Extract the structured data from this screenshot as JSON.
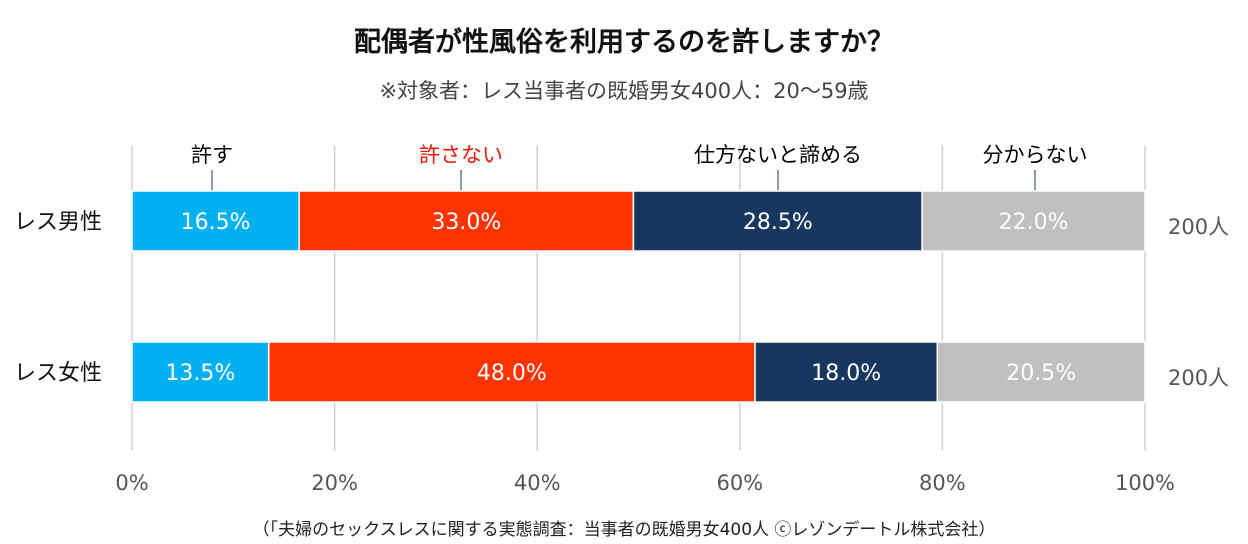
{
  "title": "配偶者が性風俗を利用するのを許しますか？",
  "subtitle": "※対象者：レス当事者の既婚男女400人：20～59歳",
  "source_note": "（「夫婦のセックスレスに関する実態調査：当事者の既婚男女400人 ⓒレゾンデートル株式会社）",
  "chart_data": {
    "type": "bar",
    "orientation": "horizontal",
    "stacked": true,
    "percent": true,
    "categories": [
      "レス男性",
      "レス女性"
    ],
    "series": [
      {
        "name": "許す",
        "values": [
          16.5,
          13.5
        ],
        "labels": [
          "16.5%",
          "13.5%"
        ],
        "color": "#00b0f0",
        "text_color": "#ffffff",
        "legend_color": "#000000"
      },
      {
        "name": "許さない",
        "values": [
          33.0,
          48.0
        ],
        "labels": [
          "33.0%",
          "48.0%"
        ],
        "color": "#ff3300",
        "text_color": "#ffffff",
        "legend_color": "#e8160c"
      },
      {
        "name": "仕方ないと諦める",
        "values": [
          28.5,
          18.0
        ],
        "labels": [
          "28.5%",
          "18.0%"
        ],
        "color": "#17375e",
        "text_color": "#ffffff",
        "legend_color": "#000000"
      },
      {
        "name": "分からない",
        "values": [
          22.0,
          20.5
        ],
        "labels": [
          "22.0%",
          "20.5%"
        ],
        "color": "#bfbfbf",
        "text_color": "#ffffff",
        "legend_color": "#000000"
      }
    ],
    "sample_sizes": [
      "200人",
      "200人"
    ],
    "xlim": [
      0,
      100
    ],
    "xticks": [
      0,
      20,
      40,
      60,
      80,
      100
    ],
    "xtick_labels": [
      "0%",
      "20%",
      "40%",
      "60%",
      "80%",
      "100%"
    ],
    "grid": true,
    "legend_placement": "top, above first bar"
  }
}
